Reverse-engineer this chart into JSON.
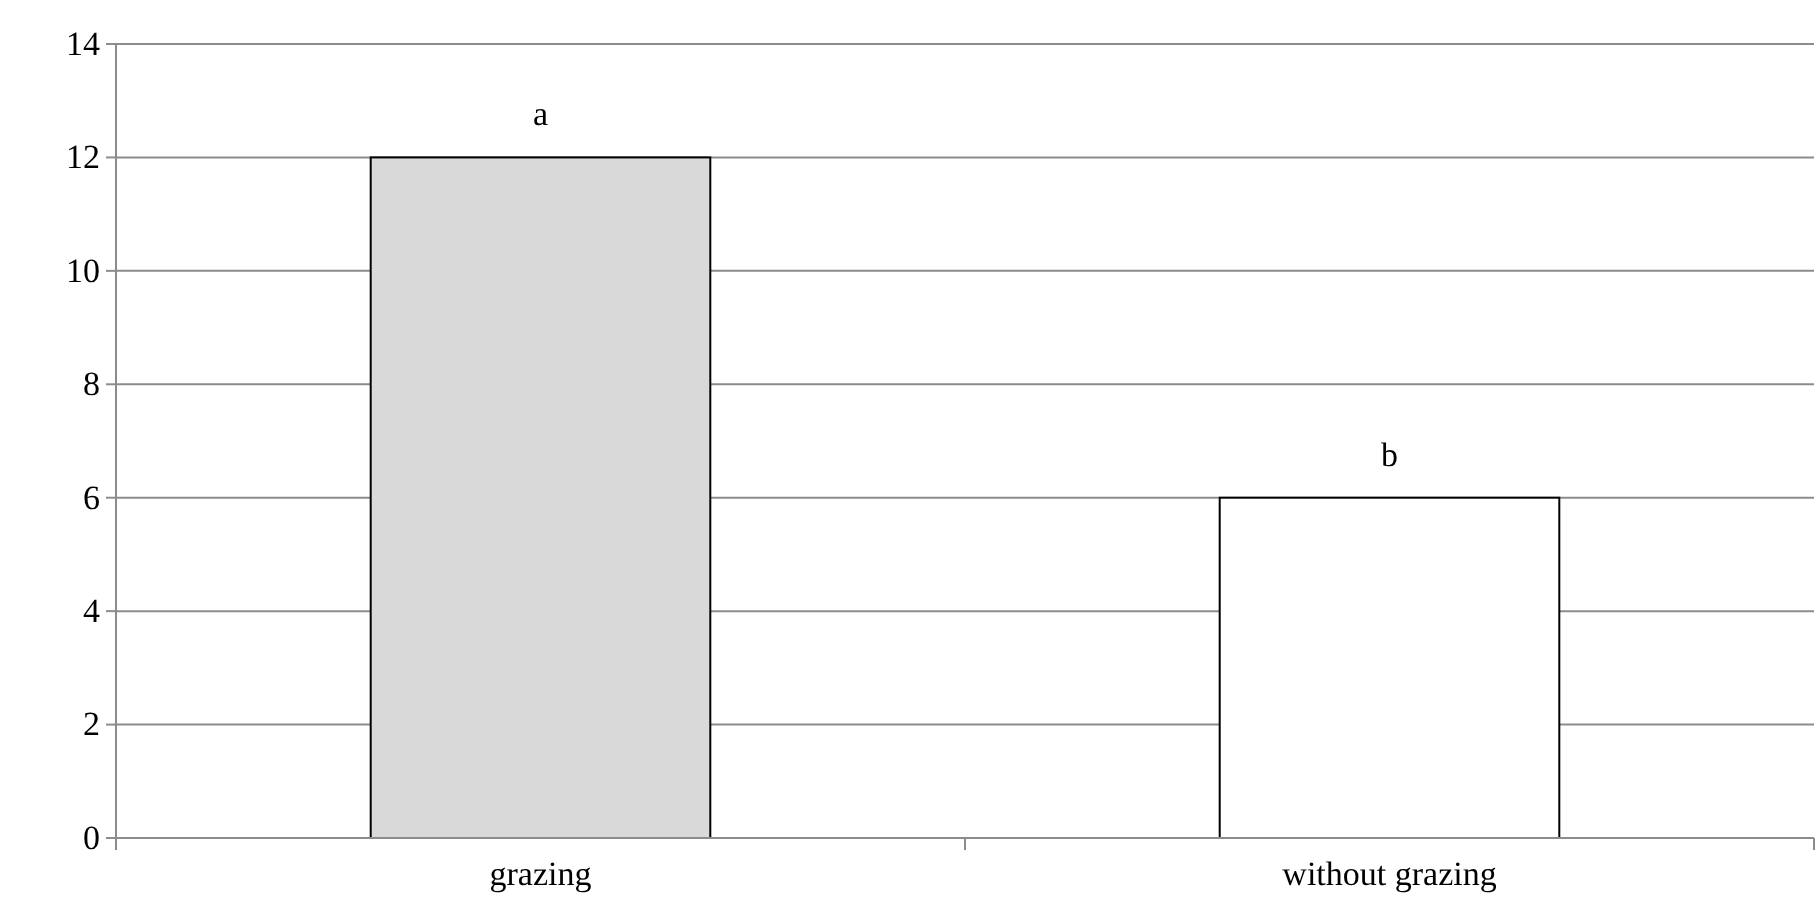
{
  "chart_data": {
    "type": "bar",
    "categories": [
      "grazing",
      "without grazing"
    ],
    "values": [
      12,
      6
    ],
    "colors": [
      "#d9d9d9",
      "#ffffff"
    ],
    "ylim": [
      0,
      14
    ],
    "yticks": [
      0,
      2,
      4,
      6,
      8,
      10,
      12,
      14
    ],
    "grid": "y",
    "annotations": [
      {
        "text": "a",
        "x": "grazing",
        "y": 12
      },
      {
        "text": "b",
        "x": "without grazing",
        "y": 6
      }
    ]
  }
}
